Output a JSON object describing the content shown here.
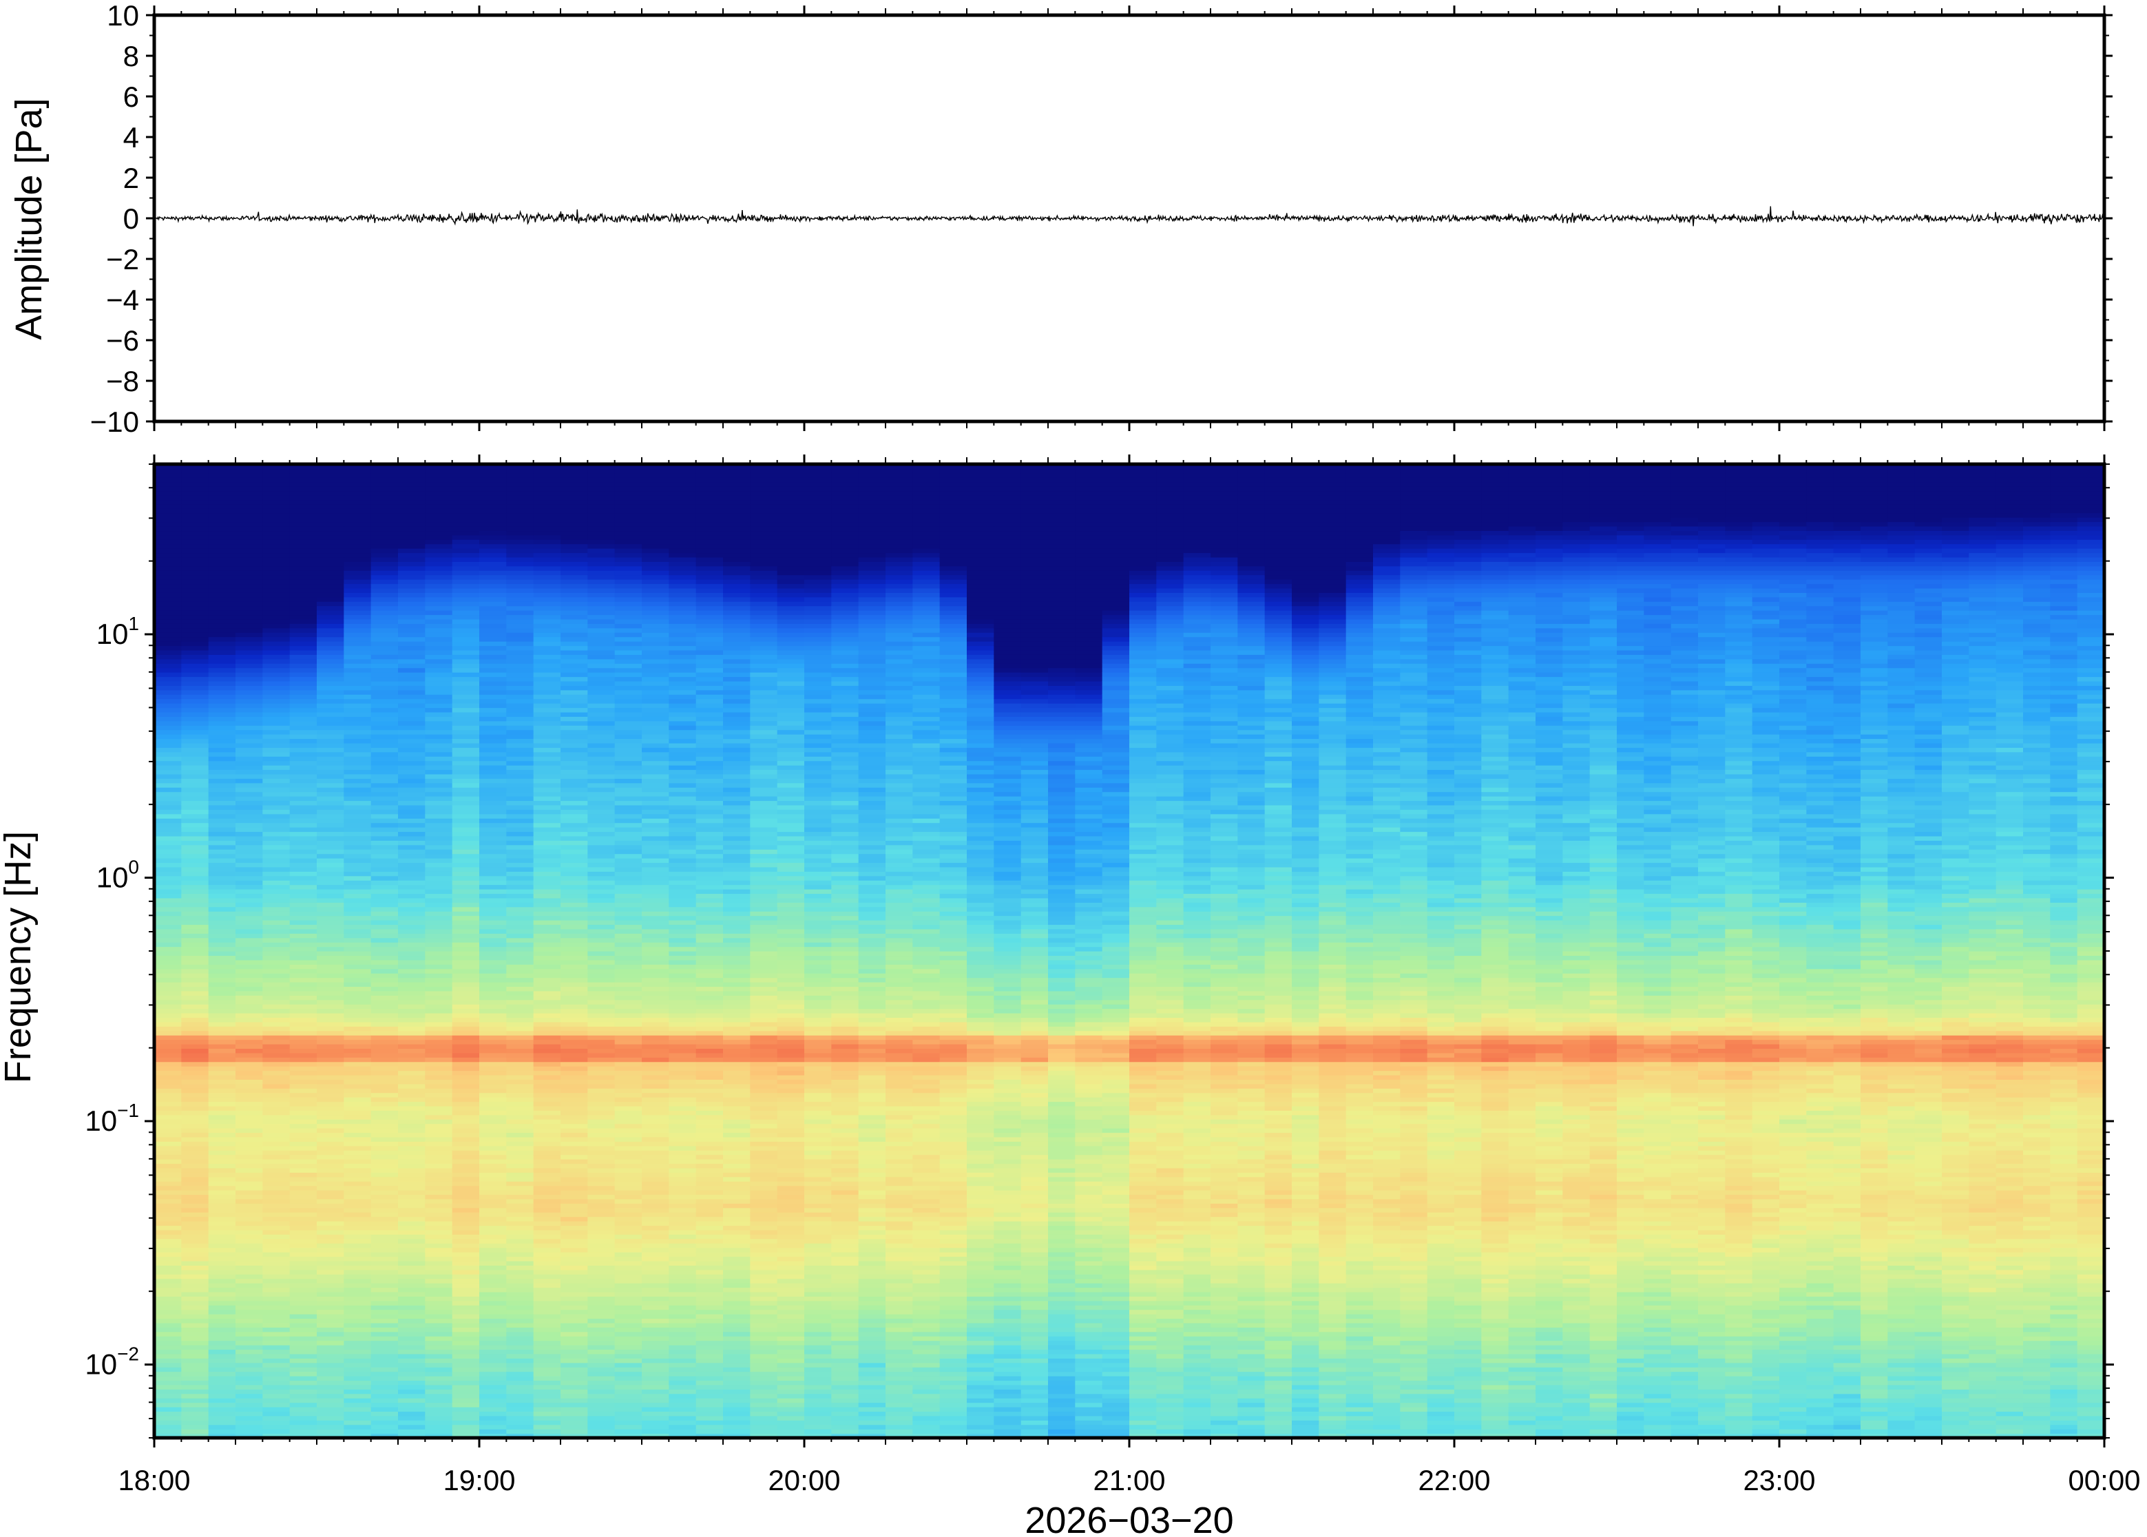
{
  "chart_data": [
    {
      "type": "line",
      "name": "waveform",
      "ylabel": "Amplitude [Pa]",
      "ylim": [
        -10,
        10
      ],
      "yticks": [
        10,
        8,
        6,
        4,
        2,
        0,
        -2,
        -4,
        -6,
        -8,
        -10
      ],
      "ytick_labels": [
        "10",
        "8",
        "6",
        "4",
        "2",
        "0",
        "−2",
        "−4",
        "−6",
        "−8",
        "−10"
      ],
      "xlim": [
        "18:00",
        "00:00"
      ],
      "color": "#000000",
      "envelope_pa": [
        {
          "t": "18:00",
          "a": 0.2
        },
        {
          "t": "18:30",
          "a": 0.25
        },
        {
          "t": "18:55",
          "a": 0.45
        },
        {
          "t": "19:10",
          "a": 0.5
        },
        {
          "t": "19:25",
          "a": 0.45
        },
        {
          "t": "19:45",
          "a": 0.3
        },
        {
          "t": "20:15",
          "a": 0.2
        },
        {
          "t": "20:45",
          "a": 0.2
        },
        {
          "t": "21:15",
          "a": 0.25
        },
        {
          "t": "21:45",
          "a": 0.25
        },
        {
          "t": "22:10",
          "a": 0.4
        },
        {
          "t": "22:40",
          "a": 0.35
        },
        {
          "t": "23:10",
          "a": 0.3
        },
        {
          "t": "23:40",
          "a": 0.35
        },
        {
          "t": "23:50",
          "a": 0.5
        },
        {
          "t": "00:00",
          "a": 0.3
        }
      ]
    },
    {
      "type": "heatmap",
      "name": "spectrogram",
      "ylabel": "Frequency [Hz]",
      "yscale": "log",
      "ylim_hz": [
        0.005,
        50
      ],
      "yticks": [
        {
          "base": "10",
          "exp": "1",
          "value": 10
        },
        {
          "base": "10",
          "exp": "0",
          "value": 1
        },
        {
          "base": "10",
          "exp": "−1",
          "value": 0.1
        },
        {
          "base": "10",
          "exp": "−2",
          "value": 0.01
        }
      ],
      "xlabel": "2026−03−20",
      "xticks": [
        "18:00",
        "19:00",
        "20:00",
        "21:00",
        "22:00",
        "23:00",
        "00:00"
      ],
      "colormap": [
        "#0a0a78",
        "#0a28c8",
        "#1e6ef0",
        "#2aa6f8",
        "#5ee0e6",
        "#aef0a0",
        "#eef08c",
        "#fcc878",
        "#f88c58",
        "#ee5040"
      ],
      "upper_noise_edge_hz": [
        {
          "t": "18:00",
          "f": 6
        },
        {
          "t": "18:30",
          "f": 8
        },
        {
          "t": "18:40",
          "f": 15
        },
        {
          "t": "19:00",
          "f": 18
        },
        {
          "t": "19:30",
          "f": 16
        },
        {
          "t": "20:00",
          "f": 12
        },
        {
          "t": "20:25",
          "f": 16
        },
        {
          "t": "20:35",
          "f": 5
        },
        {
          "t": "20:55",
          "f": 5
        },
        {
          "t": "21:00",
          "f": 12
        },
        {
          "t": "21:15",
          "f": 16
        },
        {
          "t": "21:35",
          "f": 9
        },
        {
          "t": "21:50",
          "f": 18
        },
        {
          "t": "22:30",
          "f": 20
        },
        {
          "t": "23:30",
          "f": 20
        },
        {
          "t": "00:00",
          "f": 22
        }
      ],
      "persistent_band_hz": 0.2
    }
  ]
}
